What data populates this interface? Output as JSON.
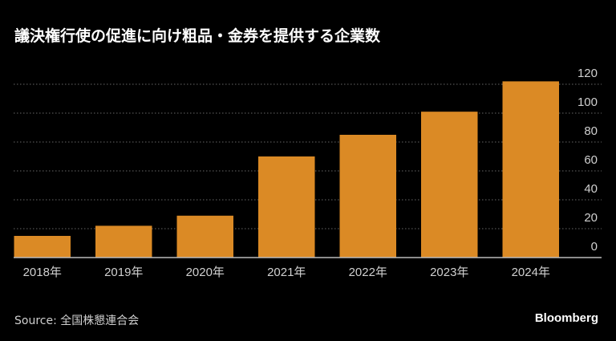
{
  "title": "議決権行使の促進に向け粗品・金券を提供する企業数",
  "source": "Source: 全国株懇連合会",
  "brand": "Bloomberg",
  "colors": {
    "bar": "#db8a25",
    "background": "#000000",
    "grid": "#666666"
  },
  "chart_data": {
    "type": "bar",
    "title": "議決権行使の促進に向け粗品・金券を提供する企業数",
    "categories": [
      "2018年",
      "2019年",
      "2020年",
      "2021年",
      "2022年",
      "2023年",
      "2024年"
    ],
    "values": [
      15,
      22,
      29,
      70,
      85,
      101,
      122
    ],
    "xlabel": "",
    "ylabel": "",
    "ylim": [
      0,
      120
    ],
    "yticks": [
      0,
      20,
      40,
      60,
      80,
      100,
      120
    ],
    "y_axis_position": "right",
    "grid": "horizontal dotted",
    "legend": "none"
  }
}
